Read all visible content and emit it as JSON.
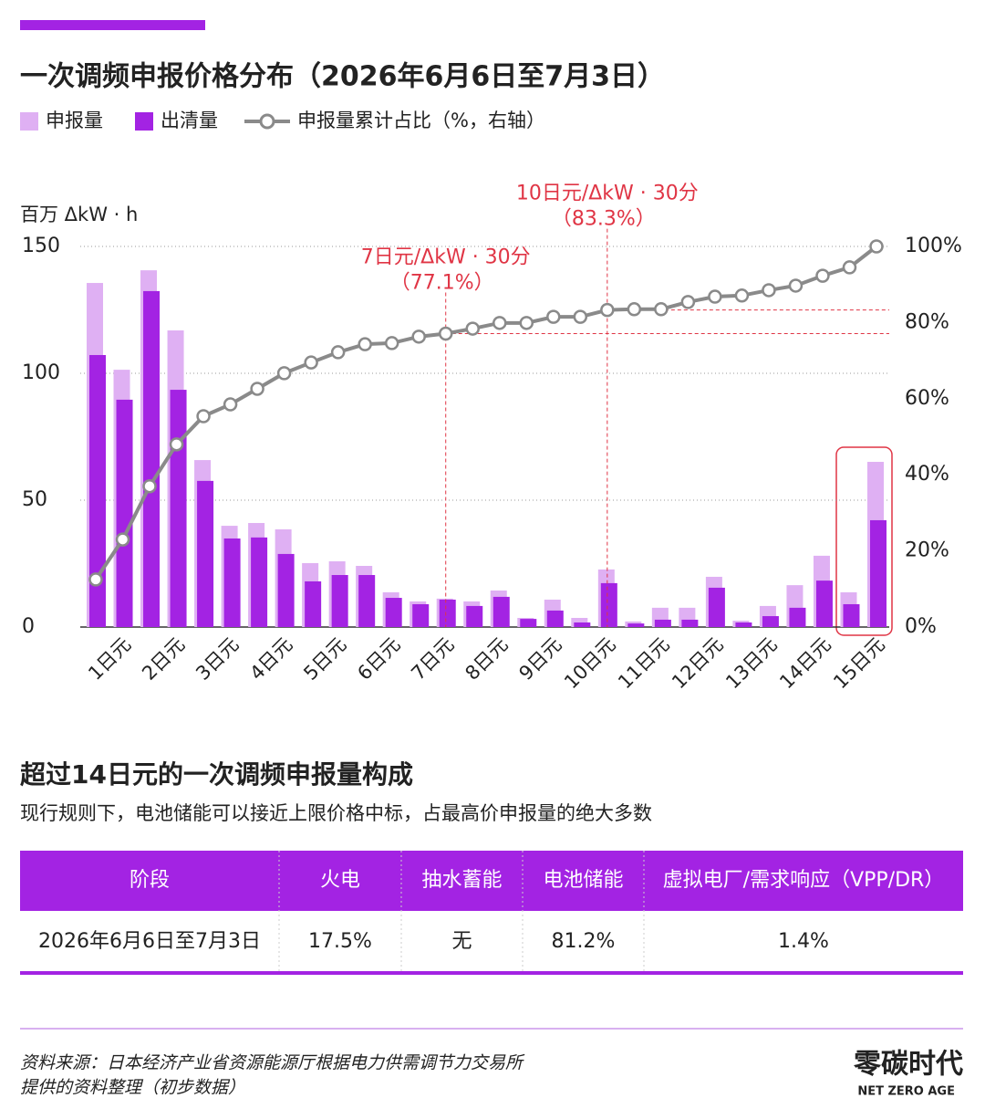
{
  "chart_data": {
    "type": "bar",
    "title": "一次调频申报价格分布（2026年6月6日至7月3日）",
    "y_label": "百万 ΔkW · h",
    "categories": [
      null,
      "1日元",
      null,
      "2日元",
      null,
      "3日元",
      null,
      "4日元",
      null,
      "5日元",
      null,
      "6日元",
      null,
      "7日元",
      null,
      "8日元",
      null,
      "9日元",
      null,
      "10日元",
      null,
      "11日元",
      null,
      "12日元",
      null,
      "13日元",
      null,
      "14日元",
      null,
      "15日元"
    ],
    "series": [
      {
        "name": "申报量",
        "type": "bar",
        "color": "#dfb0f3",
        "values": [
          135.6,
          101.4,
          140.6,
          116.9,
          65.8,
          39.9,
          41.0,
          38.5,
          25.2,
          25.9,
          24.1,
          13.7,
          10.1,
          11.2,
          10.1,
          14.4,
          3.6,
          10.8,
          3.6,
          22.7,
          2.2,
          7.6,
          7.6,
          19.8,
          2.5,
          8.3,
          16.5,
          28.1,
          13.7,
          65.1
        ]
      },
      {
        "name": "出清量",
        "type": "bar",
        "color": "#a323e3",
        "values": [
          107.2,
          89.6,
          132.4,
          93.5,
          57.6,
          34.9,
          35.3,
          28.8,
          18.0,
          20.5,
          20.5,
          11.5,
          9.0,
          10.8,
          8.3,
          11.9,
          3.2,
          6.5,
          1.8,
          17.3,
          1.4,
          2.9,
          2.9,
          15.5,
          1.8,
          4.3,
          7.6,
          18.3,
          9.0,
          42.1
        ]
      },
      {
        "name": "申报量累计占比（%，右轴）",
        "type": "line",
        "axis": "y2",
        "color": "#8a8a8a",
        "values": [
          12.5,
          23.0,
          37.0,
          48.0,
          55.4,
          58.5,
          62.6,
          66.7,
          69.5,
          72.2,
          74.3,
          74.6,
          76.3,
          77.1,
          78.4,
          79.9,
          79.9,
          81.5,
          81.5,
          83.3,
          83.5,
          83.5,
          85.4,
          86.8,
          87.1,
          88.5,
          89.7,
          92.3,
          94.5,
          100
        ]
      }
    ],
    "ylim": [
      0,
      150
    ],
    "yticks": [
      0,
      50,
      100,
      150
    ],
    "y2lim": [
      0,
      100
    ],
    "y2ticks": [
      {
        "value": 0,
        "label": "0%"
      },
      {
        "value": 20,
        "label": "20%"
      },
      {
        "value": 40,
        "label": "40%"
      },
      {
        "value": 60,
        "label": "60%"
      },
      {
        "value": 80,
        "label": "80%"
      },
      {
        "value": 100,
        "label": "100%"
      }
    ],
    "grid": true,
    "annotations": [
      {
        "label": "7日元/ΔkW · 30分",
        "value_label": "（77.1%）",
        "value": 77.1,
        "color": "#e03545"
      },
      {
        "label": "10日元/ΔkW · 30分",
        "value_label": "（83.3%）",
        "value": 83.3,
        "color": "#e03545"
      }
    ]
  },
  "table": {
    "title": "超过14日元的一次调频申报量构成",
    "subtitle": "现行规则下，电池储能可以接近上限价格中标，占最高价申报量的绝大多数",
    "header": [
      "阶段",
      "火电",
      "抽水蓄能",
      "电池储能",
      "虚拟电厂/需求响应（VPP/DR）"
    ],
    "rows": [
      [
        "2026年6月6日至7月3日",
        "17.5%",
        "无",
        "81.2%",
        "1.4%"
      ]
    ]
  },
  "footer": {
    "source": [
      "资料来源：日本经济产业省资源能源厅根据电力供需调节力交易所",
      "提供的资料整理（初步数据）"
    ],
    "logo": "零碳时代",
    "logo_sub": "NET ZERO AGE"
  }
}
